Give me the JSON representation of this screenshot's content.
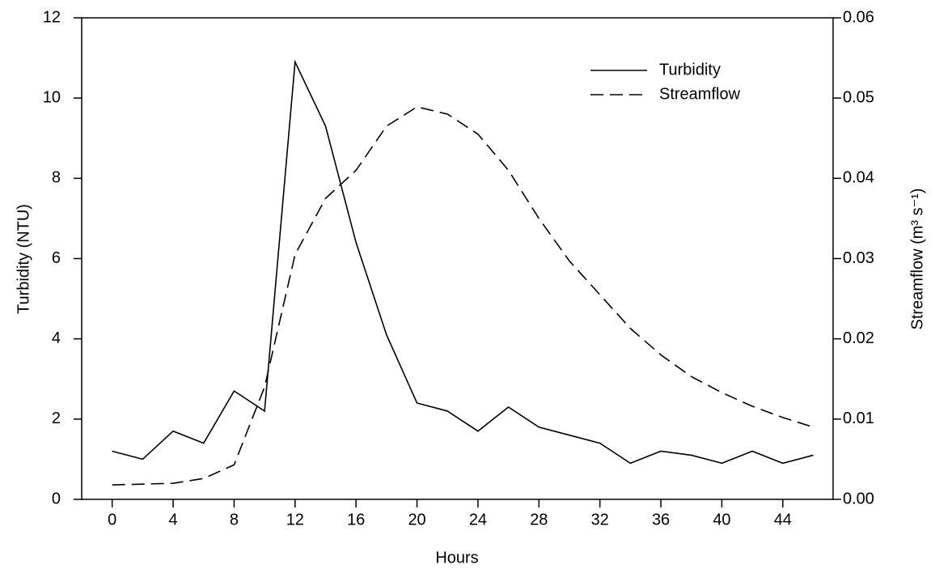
{
  "chart_data": {
    "type": "line",
    "xlabel": "Hours",
    "ylabel": "Turbidity (NTU)",
    "y2label": "Streamflow (m³ s⁻¹)",
    "x": [
      0,
      2,
      4,
      6,
      8,
      10,
      12,
      14,
      16,
      18,
      20,
      22,
      24,
      26,
      28,
      30,
      32,
      34,
      36,
      38,
      40,
      42,
      44,
      46
    ],
    "series": [
      {
        "name": "Turbidity",
        "color": "#000000",
        "linestyle": "solid",
        "values": [
          1.2,
          1.0,
          1.7,
          1.4,
          2.7,
          2.2,
          10.9,
          9.3,
          6.4,
          4.1,
          2.4,
          2.2,
          1.7,
          2.3,
          1.8,
          1.6,
          1.4,
          0.9,
          1.2,
          1.1,
          0.9,
          1.2,
          0.9,
          1.1
        ]
      },
      {
        "name": "Streamflow",
        "color": "#000000",
        "linestyle": "dashed",
        "axis": "y2",
        "values": [
          0.0018,
          0.0019,
          0.002,
          0.0026,
          0.0043,
          0.014,
          0.0305,
          0.0375,
          0.041,
          0.0465,
          0.0489,
          0.048,
          0.0455,
          0.041,
          0.035,
          0.0297,
          0.0255,
          0.0213,
          0.018,
          0.0153,
          0.0133,
          0.0116,
          0.0102,
          0.009
        ]
      }
    ],
    "xlim": [
      -2,
      47.3
    ],
    "xticks": [
      0,
      4,
      8,
      12,
      16,
      20,
      24,
      28,
      32,
      36,
      40,
      44
    ],
    "ylim": [
      0,
      12
    ],
    "yticks": [
      0,
      2,
      4,
      6,
      8,
      10,
      12
    ],
    "y2lim": [
      0,
      0.06
    ],
    "y2ticks": [
      {
        "value": 0,
        "label": "0.00"
      },
      0.01,
      0.02,
      0.03,
      0.04,
      0.05,
      0.06
    ],
    "legend": "upper right"
  }
}
